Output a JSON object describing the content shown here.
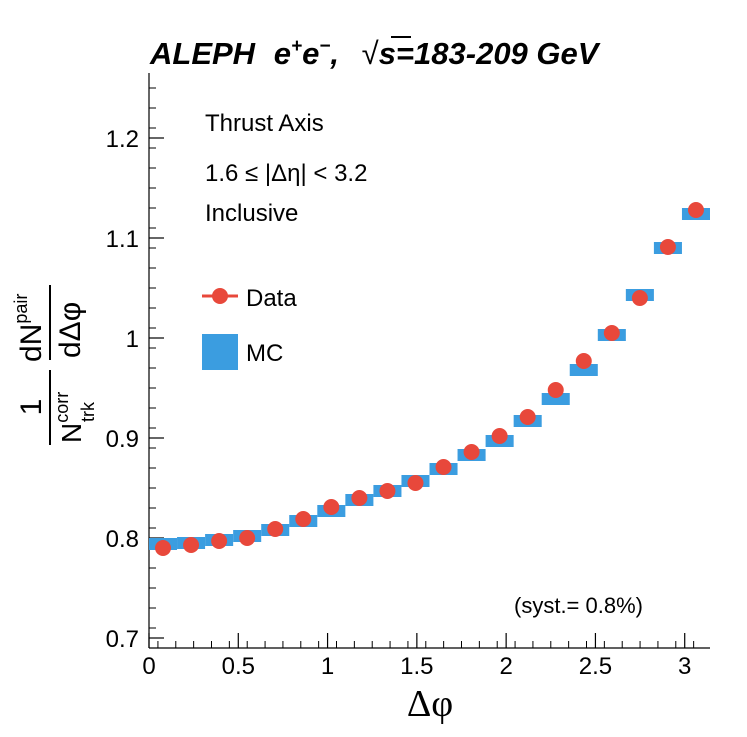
{
  "chart_data": {
    "type": "scatter",
    "title": {
      "experiment": "ALEPH",
      "beam_base": "e",
      "beam_plus": "+",
      "beam_minus": "−",
      "sep": ",",
      "sqrt_symbol": "√",
      "energy": "s=183-209 GeV"
    },
    "xlabel": "Δφ",
    "ylabel": {
      "frac_num": "1",
      "n_base": "N",
      "n_sup": "corr",
      "n_sub": "trk",
      "deriv_num_base": "dN",
      "deriv_num_sup": "pair",
      "deriv_den": "dΔφ"
    },
    "xlim": [
      0,
      3.1416
    ],
    "ylim": [
      0.69,
      1.265
    ],
    "x_ticks": [
      0,
      0.5,
      1,
      1.5,
      2,
      2.5,
      3
    ],
    "x_tick_labels": [
      "0",
      "0.5",
      "1",
      "1.5",
      "2",
      "2.5",
      "3"
    ],
    "y_ticks": [
      0.7,
      0.8,
      0.9,
      1.0,
      1.1,
      1.2
    ],
    "y_tick_labels": [
      "0.7",
      "0.8",
      "0.9",
      "1",
      "1.1",
      "1.2"
    ],
    "annotations": [
      "Thrust Axis",
      "1.6 ≤ |Δη| < 3.2",
      "Inclusive"
    ],
    "systematic": "(syst.= 0.8%)",
    "bin_width": 0.15708,
    "x": [
      0.0785,
      0.2356,
      0.3927,
      0.5498,
      0.7069,
      0.8639,
      1.021,
      1.1781,
      1.3352,
      1.4923,
      1.6493,
      1.8064,
      1.9635,
      2.1206,
      2.2777,
      2.4347,
      2.5918,
      2.7489,
      2.906,
      3.0631
    ],
    "series": [
      {
        "name": "Data",
        "style": "marker",
        "color": "#e8483b",
        "values": [
          0.79,
          0.793,
          0.797,
          0.8,
          0.809,
          0.819,
          0.831,
          0.84,
          0.847,
          0.855,
          0.871,
          0.886,
          0.902,
          0.921,
          0.948,
          0.977,
          1.005,
          1.04,
          1.091,
          1.128
        ]
      },
      {
        "name": "MC",
        "style": "box",
        "color": "#3b9de0",
        "values": [
          0.794,
          0.795,
          0.798,
          0.802,
          0.808,
          0.817,
          0.827,
          0.838,
          0.847,
          0.857,
          0.869,
          0.883,
          0.897,
          0.917,
          0.939,
          0.968,
          1.003,
          1.043,
          1.09,
          1.124
        ]
      }
    ]
  }
}
